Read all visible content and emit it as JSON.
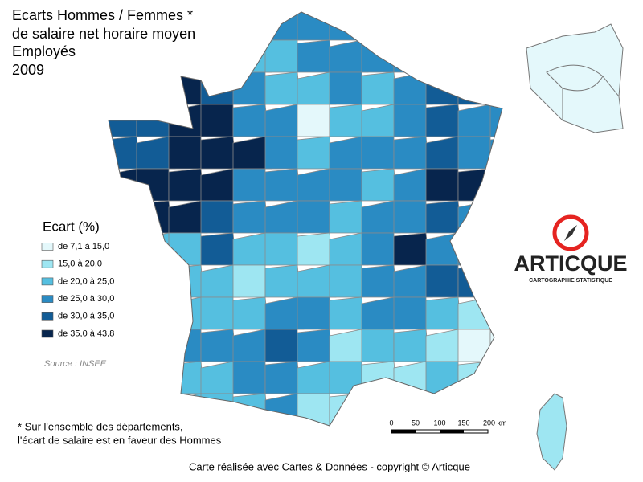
{
  "title": [
    "Ecarts Hommes / Femmes *",
    "de salaire net horaire moyen",
    "Employés",
    "2009"
  ],
  "legend": {
    "title": "Ecart (%)",
    "items": [
      {
        "label": "de 7,1 à 15,0",
        "color": "#e4f8fb"
      },
      {
        "label": "15,0 à 20,0",
        "color": "#9ee6f2"
      },
      {
        "label": "de 20,0 à 25,0",
        "color": "#55bfe0"
      },
      {
        "label": "de 25,0 à 30,0",
        "color": "#2a8bc3"
      },
      {
        "label": "de 30,0 à 35,0",
        "color": "#125c96"
      },
      {
        "label": "de 35,0 à 43,8",
        "color": "#07254d"
      }
    ]
  },
  "source": "Source : INSEE",
  "scale": [
    "0",
    "50",
    "100",
    "150",
    "200 km"
  ],
  "logo": {
    "name": "ARTICQUE",
    "tagline": "CARTOGRAPHIE STATISTIQUE"
  },
  "footnote": [
    "* Sur l'ensemble des départements,",
    "l'écart de salaire est en faveur des Hommes"
  ],
  "credit": "Carte réalisée avec Cartes & Données - copyright © Articque"
}
